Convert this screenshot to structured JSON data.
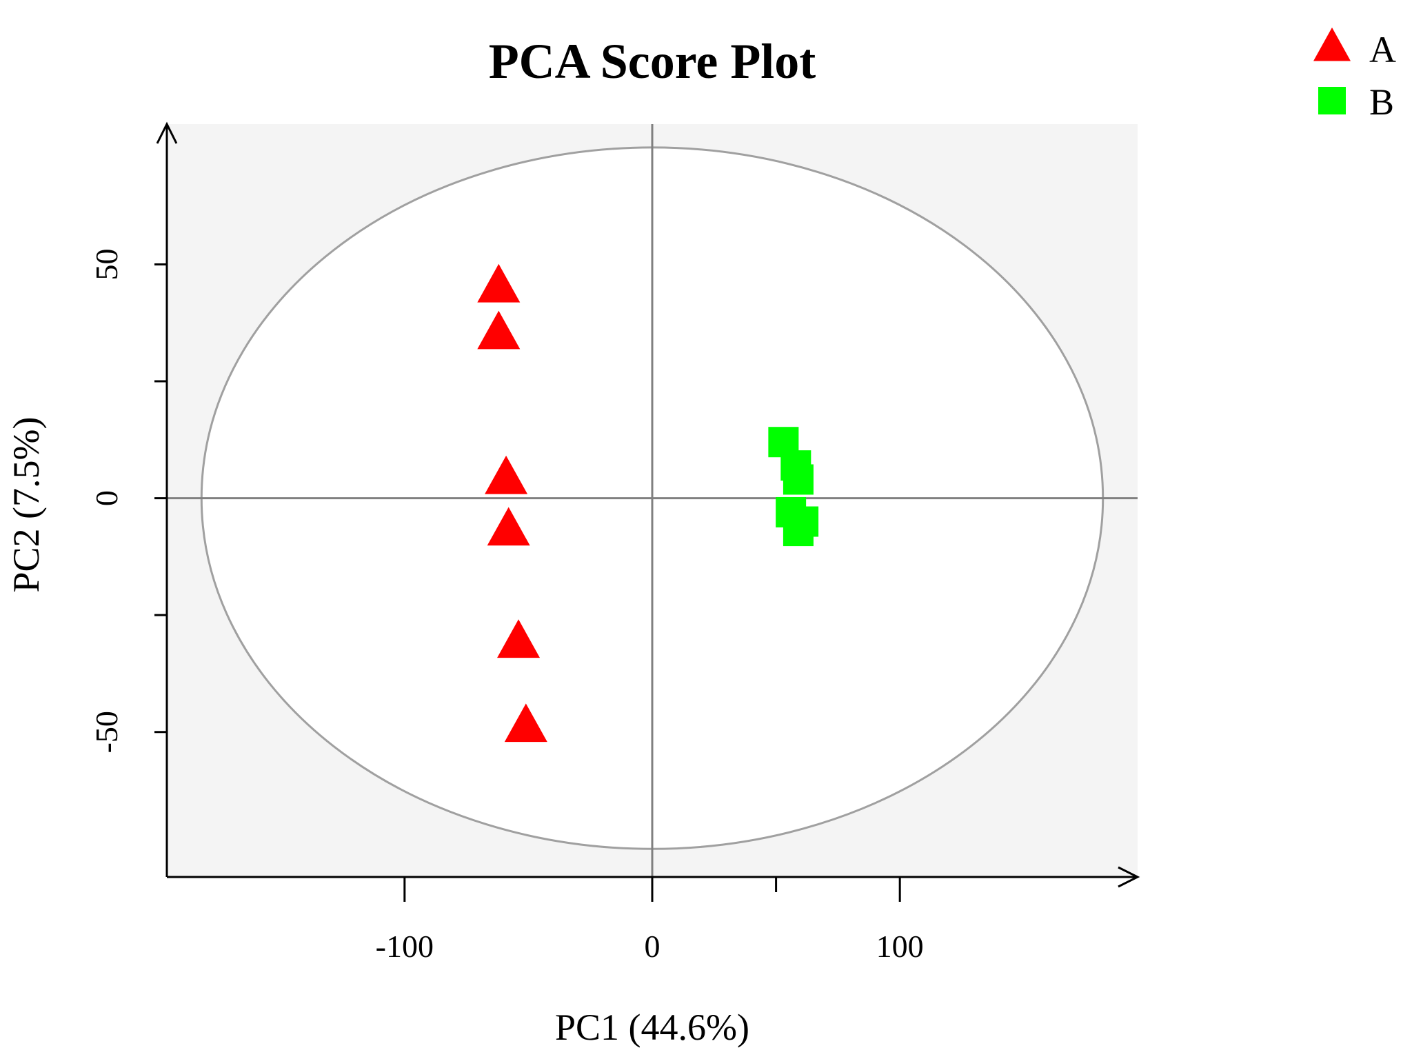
{
  "chart_data": {
    "type": "scatter",
    "title": "PCA Score Plot",
    "xlabel": "PC1 (44.6%)",
    "ylabel": "PC2 (7.5%)",
    "xlim": [
      -196,
      196
    ],
    "ylim": [
      -81,
      80
    ],
    "x_ticks": [
      -100,
      0,
      100
    ],
    "x_tick_labels": [
      "-100",
      "0",
      "100"
    ],
    "y_ticks": [
      -50,
      0,
      50
    ],
    "y_tick_labels": [
      "-50",
      "0",
      "50"
    ],
    "x_minor_ticks": [
      -100,
      0,
      50,
      100
    ],
    "y_minor_ticks": [
      -50,
      -25,
      0,
      25,
      50
    ],
    "legend_position": "top-right",
    "ellipse": {
      "cx": 0,
      "cy": 0,
      "rx": 182,
      "ry": 75
    },
    "reference_lines": {
      "x": 0,
      "y": 0
    },
    "colors": {
      "A": "#ff0000",
      "B": "#00ff00",
      "panel": "#f4f4f4",
      "ellipse": "#a0a0a0",
      "ref_line": "#808080"
    },
    "series": [
      {
        "name": "A",
        "marker": "triangle",
        "color": "#ff0000",
        "points": [
          [
            -62,
            45
          ],
          [
            -62,
            35
          ],
          [
            -59,
            4
          ],
          [
            -58,
            -7
          ],
          [
            -54,
            -31
          ],
          [
            -51,
            -49
          ]
        ]
      },
      {
        "name": "B",
        "marker": "square",
        "color": "#00ff00",
        "points": [
          [
            53,
            12
          ],
          [
            58,
            7
          ],
          [
            59,
            4
          ],
          [
            56,
            -3
          ],
          [
            61,
            -5
          ],
          [
            59,
            -7
          ]
        ]
      }
    ]
  }
}
